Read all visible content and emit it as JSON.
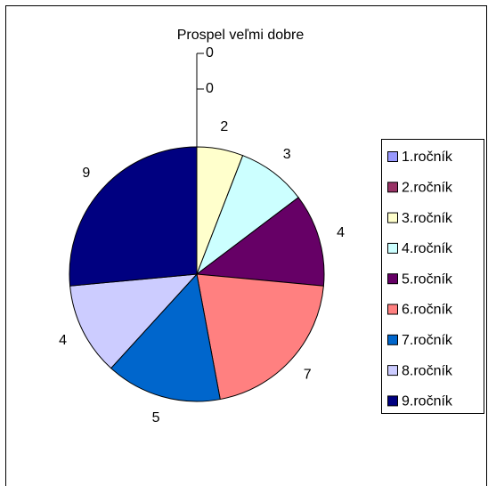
{
  "chart_data": {
    "type": "pie",
    "title": "Prospel veľmi dobre",
    "categories": [
      "1.ročník",
      "2.ročník",
      "3.ročník",
      "4.ročník",
      "5.ročník",
      "6.ročník",
      "7.ročník",
      "8.ročník",
      "9.ročník"
    ],
    "values": [
      0,
      0,
      2,
      3,
      4,
      7,
      5,
      4,
      9
    ],
    "colors": [
      "#9999ff",
      "#993366",
      "#ffffcc",
      "#ccffff",
      "#660066",
      "#ff8080",
      "#0066cc",
      "#ccccff",
      "#000080"
    ],
    "legend": "right"
  }
}
